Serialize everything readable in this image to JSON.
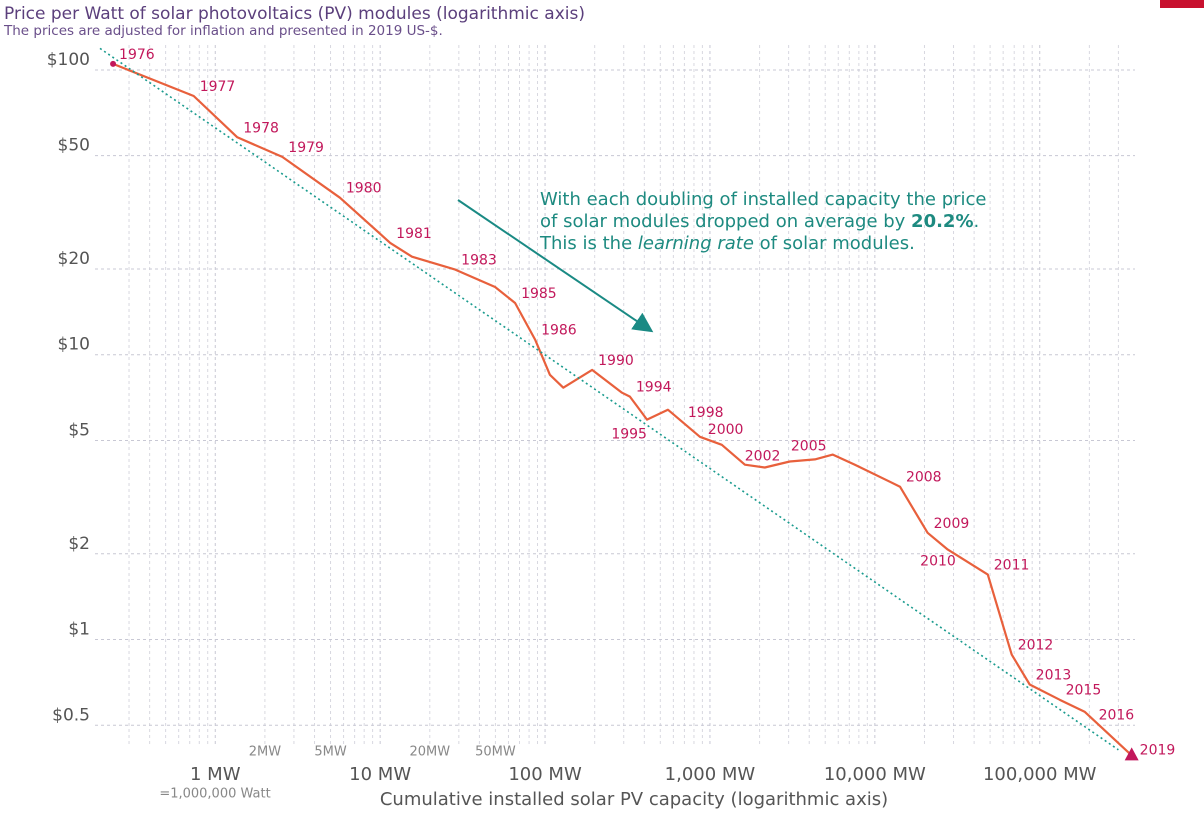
{
  "chart_data": {
    "type": "line",
    "title": "Price per Watt of solar photovoltaics (PV) modules (logarithmic axis)",
    "subtitle": "The prices are adjusted for inflation and presented in 2019 US-$.",
    "xlabel": "Cumulative installed solar PV capacity (logarithmic axis)",
    "x_note": "=1,000,000 Watt",
    "annotation": {
      "line1": "With each doubling of installed capacity the price",
      "line2": [
        "of solar modules dropped on average by ",
        "20.2%",
        "."
      ],
      "line3": [
        "This is the ",
        "learning rate",
        " of solar modules."
      ]
    },
    "xlog": true,
    "ylog": true,
    "xlim": [
      0.2,
      500000
    ],
    "ylim": [
      0.39,
      130
    ],
    "yticks": [
      {
        "value": 100,
        "label": "$100"
      },
      {
        "value": 50,
        "label": "$50"
      },
      {
        "value": 20,
        "label": "$20"
      },
      {
        "value": 10,
        "label": "$10"
      },
      {
        "value": 5,
        "label": "$5"
      },
      {
        "value": 2,
        "label": "$2"
      },
      {
        "value": 1,
        "label": "$1"
      },
      {
        "value": 0.5,
        "label": "$0.5"
      }
    ],
    "xticks": [
      {
        "value": 1,
        "label": "1 MW"
      },
      {
        "value": 10,
        "label": "10 MW"
      },
      {
        "value": 100,
        "label": "100 MW"
      },
      {
        "value": 1000,
        "label": "1,000 MW"
      },
      {
        "value": 10000,
        "label": "10,000 MW"
      },
      {
        "value": 100000,
        "label": "100,000 MW"
      }
    ],
    "xticks_minor": [
      0.3,
      0.4,
      0.5,
      0.6,
      0.7,
      0.8,
      0.9,
      {
        "value": 2,
        "label": "2MW"
      },
      3,
      4,
      {
        "value": 5,
        "label": "5MW"
      },
      6,
      7,
      8,
      9,
      {
        "value": 20,
        "label": "20MW"
      },
      30,
      40,
      {
        "value": 50,
        "label": "50MW"
      },
      60,
      70,
      80,
      90,
      200,
      300,
      400,
      500,
      600,
      700,
      800,
      900,
      2000,
      3000,
      4000,
      5000,
      6000,
      7000,
      8000,
      9000,
      20000,
      30000,
      40000,
      50000,
      60000,
      70000,
      80000,
      90000,
      200000,
      300000
    ],
    "grid": true,
    "series": [
      {
        "color": "#e8603c",
        "label_color": "#c2185b",
        "labels": [
          "1976",
          "1977",
          "1978",
          "1979",
          "1980",
          "1981",
          null,
          "1983",
          null,
          "1985",
          "1986",
          null,
          null,
          "1990",
          null,
          "1994",
          "1995",
          null,
          "1998",
          "2000",
          null,
          "2002",
          null,
          "2005",
          null,
          null,
          "2008",
          "2009",
          "2010",
          "2011",
          "2012",
          "2013",
          "2015",
          "2016",
          "2019"
        ],
        "x": [
          0.24,
          0.74,
          1.36,
          2.55,
          5.7,
          11.5,
          15.6,
          28.5,
          49.8,
          65.8,
          87,
          107,
          129,
          193,
          293,
          327,
          415,
          556,
          869,
          1180,
          1630,
          2150,
          3050,
          4330,
          5560,
          7570,
          14200,
          20900,
          27700,
          48400,
          67600,
          86900,
          132000,
          187000,
          361000
        ],
        "values": [
          105,
          81,
          58,
          49.5,
          35.6,
          24.7,
          22.1,
          19.9,
          17.3,
          15.2,
          11.3,
          8.5,
          7.66,
          8.85,
          7.36,
          7.13,
          5.92,
          6.41,
          5.15,
          4.83,
          4.11,
          4.02,
          4.22,
          4.29,
          4.46,
          4.11,
          3.44,
          2.37,
          2.07,
          1.69,
          0.885,
          0.695,
          0.615,
          0.558,
          0.392
        ]
      },
      {
        "color": "#1a9b8e",
        "dotted": true,
        "x": [
          0.2,
          300000
        ],
        "values": [
          119,
          0.41
        ]
      }
    ]
  }
}
